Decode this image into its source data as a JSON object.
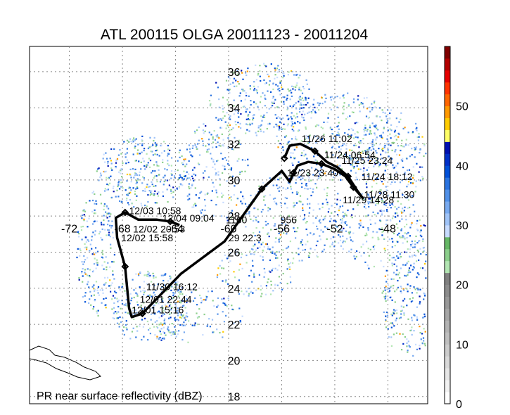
{
  "chart_data": {
    "type": "map-track",
    "title": "ATL 200115 OLGA 20011123 - 20011204",
    "caption": "PR near surface reflectivity (dBZ)",
    "colorbar": {
      "unit": "dBZ",
      "range": [
        0,
        60
      ],
      "tick_labels": [
        "0",
        "10",
        "20",
        "30",
        "40",
        "50"
      ],
      "tick_values": [
        0,
        10,
        20,
        30,
        40,
        50
      ],
      "colors": [
        "#ffffff",
        "#f2f2f2",
        "#e6e6e6",
        "#d9d9d9",
        "#cccccc",
        "#bfbfbf",
        "#b3b3b3",
        "#a6a6a6",
        "#999999",
        "#8c8c8c",
        "#808080",
        "#b3e6b3",
        "#8ccf8c",
        "#66b866",
        "#c8dcff",
        "#a0c4f8",
        "#78aaf0",
        "#5090e8",
        "#2a73e0",
        "#0050d8",
        "#0030c8",
        "#0010b0",
        "#ffff66",
        "#ffcc00",
        "#ff9900",
        "#ff6600",
        "#ff3300",
        "#e60000",
        "#b30000",
        "#800000"
      ]
    },
    "lat_labels": [
      "36",
      "34",
      "32",
      "30",
      "28",
      "26",
      "24",
      "22",
      "20",
      "18"
    ],
    "lat_values": [
      36,
      34,
      32,
      30,
      28,
      26,
      24,
      22,
      20,
      18
    ],
    "lon_labels": [
      "-72",
      "-68",
      "-64",
      "-60",
      "-56",
      "-52",
      "-48"
    ],
    "lon_values": [
      -72,
      -68,
      -64,
      -60,
      -56,
      -52,
      -48
    ],
    "axis_range": {
      "lon": [
        -75,
        -45
      ],
      "lat": [
        17.6,
        37.4
      ]
    },
    "grid": true,
    "track": [
      [
        -55.8,
        31.2
      ],
      [
        -55.4,
        31.9
      ],
      [
        -54.6,
        32.0
      ],
      [
        -53.5,
        31.6
      ],
      [
        -52.6,
        31.0
      ],
      [
        -51.8,
        30.7
      ],
      [
        -51.0,
        30.2
      ],
      [
        -50.3,
        29.4
      ],
      [
        -49.9,
        29.0
      ],
      [
        -50.6,
        29.6
      ],
      [
        -51.2,
        30.2
      ],
      [
        -52.0,
        30.6
      ],
      [
        -53.0,
        30.9
      ],
      [
        -54.0,
        31.0
      ],
      [
        -54.8,
        30.8
      ],
      [
        -55.1,
        30.4
      ],
      [
        -55.4,
        29.9
      ],
      [
        -56.0,
        30.5
      ],
      [
        -57.5,
        29.5
      ],
      [
        -60.3,
        26.6
      ],
      [
        -63.6,
        24.8
      ],
      [
        -66.5,
        22.6
      ],
      [
        -67.3,
        22.4
      ],
      [
        -67.5,
        22.9
      ],
      [
        -67.8,
        25.2
      ],
      [
        -68.4,
        26.8
      ],
      [
        -68.5,
        27.9
      ],
      [
        -67.8,
        28.2
      ],
      [
        -66.8,
        27.8
      ],
      [
        -65.4,
        27.8
      ],
      [
        -64.4,
        27.7
      ],
      [
        -63.7,
        27.5
      ]
    ],
    "track_labels": [
      {
        "text": "11/23 23:40",
        "lon": -55.6,
        "lat": 30.2
      },
      {
        "text": "11/24 06:54",
        "lon": -52.8,
        "lat": 31.2
      },
      {
        "text": "11/24 18:12",
        "lon": -50.0,
        "lat": 30.0
      },
      {
        "text": "11/25 23:24",
        "lon": -51.5,
        "lat": 30.9
      },
      {
        "text": "11/26 11:02",
        "lon": -54.5,
        "lat": 32.1
      },
      {
        "text": "11/28 11:30",
        "lon": -49.8,
        "lat": 29.0
      },
      {
        "text": "11/29 14:28",
        "lon": -51.4,
        "lat": 28.7
      },
      {
        "text": "11/30 16:12",
        "lon": -66.2,
        "lat": 23.9
      },
      {
        "text": "12/01 15:16",
        "lon": -67.3,
        "lat": 22.6
      },
      {
        "text": "12/01 22:44",
        "lon": -66.7,
        "lat": 23.2
      },
      {
        "text": "12/02 15:58",
        "lon": -68.1,
        "lat": 26.6
      },
      {
        "text": "12/02 20:53",
        "lon": -67.2,
        "lat": 27.1
      },
      {
        "text": "12/03 10:58",
        "lon": -67.5,
        "lat": 28.1
      },
      {
        "text": "12/04 09:04",
        "lon": -65.0,
        "lat": 27.7
      },
      {
        "text": "1160",
        "lon": -60.2,
        "lat": 27.6
      },
      {
        "text": "956",
        "lon": -56.1,
        "lat": 27.6
      },
      {
        "text": "29 22.3",
        "lon": -60.0,
        "lat": 26.6
      }
    ]
  }
}
